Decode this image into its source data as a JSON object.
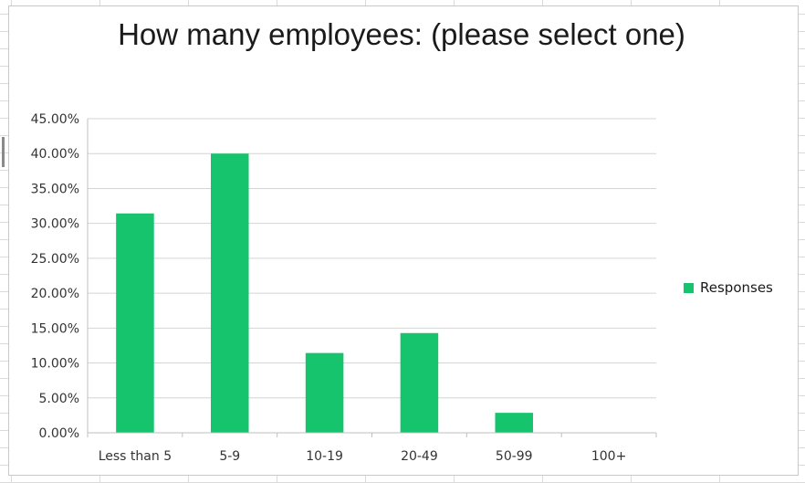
{
  "chart_data": {
    "type": "bar",
    "title": "How many employees: (please select one)",
    "categories": [
      "Less than 5",
      "5-9",
      "10-19",
      "20-49",
      "50-99",
      "100+"
    ],
    "series": [
      {
        "name": "Responses",
        "values": [
          31.43,
          40.0,
          11.43,
          14.29,
          2.86,
          0.0
        ],
        "color": "#17c46e"
      }
    ],
    "y_ticks": [
      "0.00%",
      "5.00%",
      "10.00%",
      "15.00%",
      "20.00%",
      "25.00%",
      "30.00%",
      "35.00%",
      "40.00%",
      "45.00%"
    ],
    "ylim": [
      0,
      45
    ],
    "grid": true,
    "legend_position": "right"
  }
}
